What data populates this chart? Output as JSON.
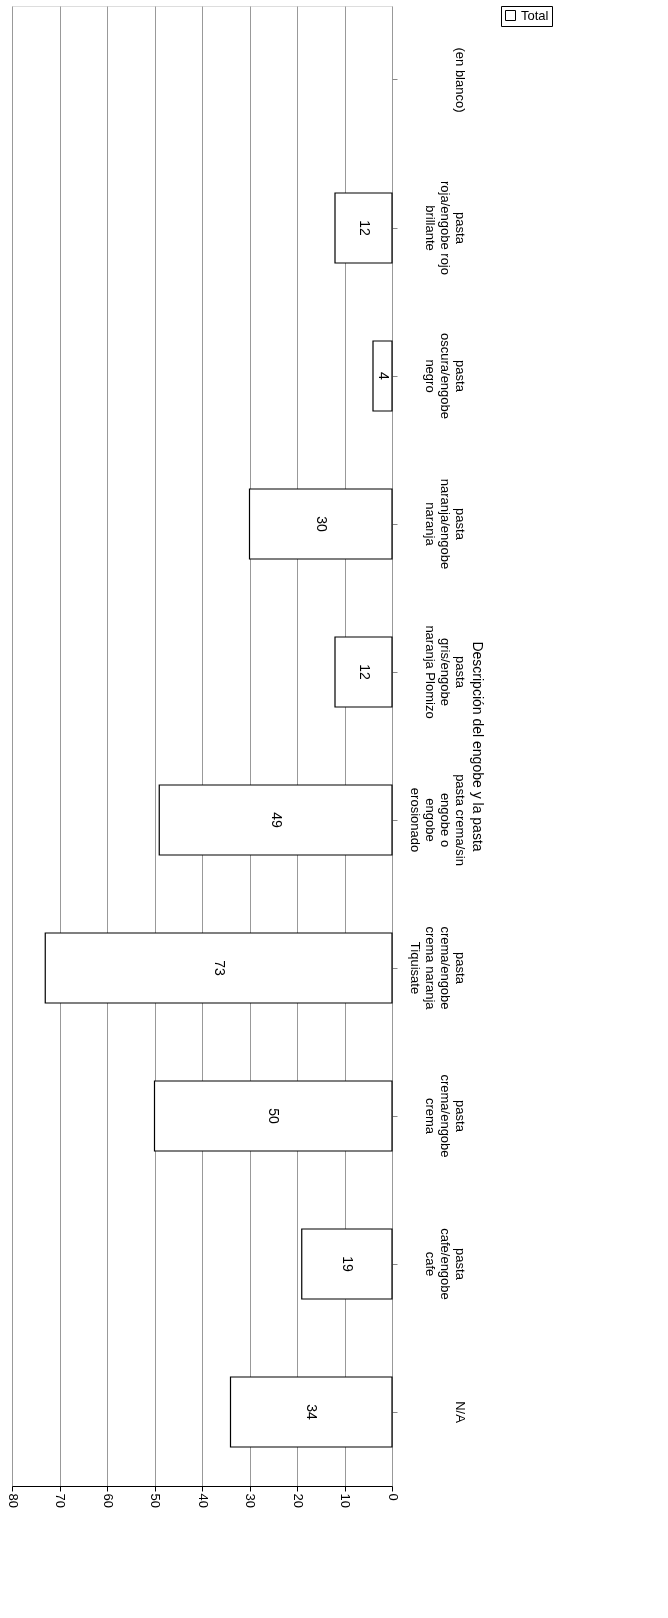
{
  "chart_data": {
    "type": "bar",
    "orientation": "horizontal",
    "ylabel": "Descripción del engobe y la pasta",
    "categories": [
      "(en blanco)",
      "pasta\nroja/engobe rojo\nbrillante",
      "pasta\noscura/engobe\nnegro",
      "pasta\nnaranja/engobe\nnaranja",
      "pasta\ngris/engobe\nnaranja Plomizo",
      "pasta crema/sin\nengobe o\nengobe\nerosionado",
      "pasta\ncrema/engobe\ncrema naranja\nTiquisate",
      "pasta\ncrema/engobe\ncrema",
      "pasta\ncafe/engobe\ncafe",
      "N/A"
    ],
    "series": [
      {
        "name": "Total",
        "color": "#ffffff",
        "values": [
          null,
          12,
          4,
          30,
          12,
          49,
          73,
          50,
          19,
          34
        ]
      }
    ],
    "xlim": [
      80,
      0
    ],
    "xticks": [
      80,
      70,
      60,
      50,
      40,
      30,
      20,
      10,
      0
    ],
    "grid": "x",
    "legend": "top right",
    "data_labels": true
  }
}
